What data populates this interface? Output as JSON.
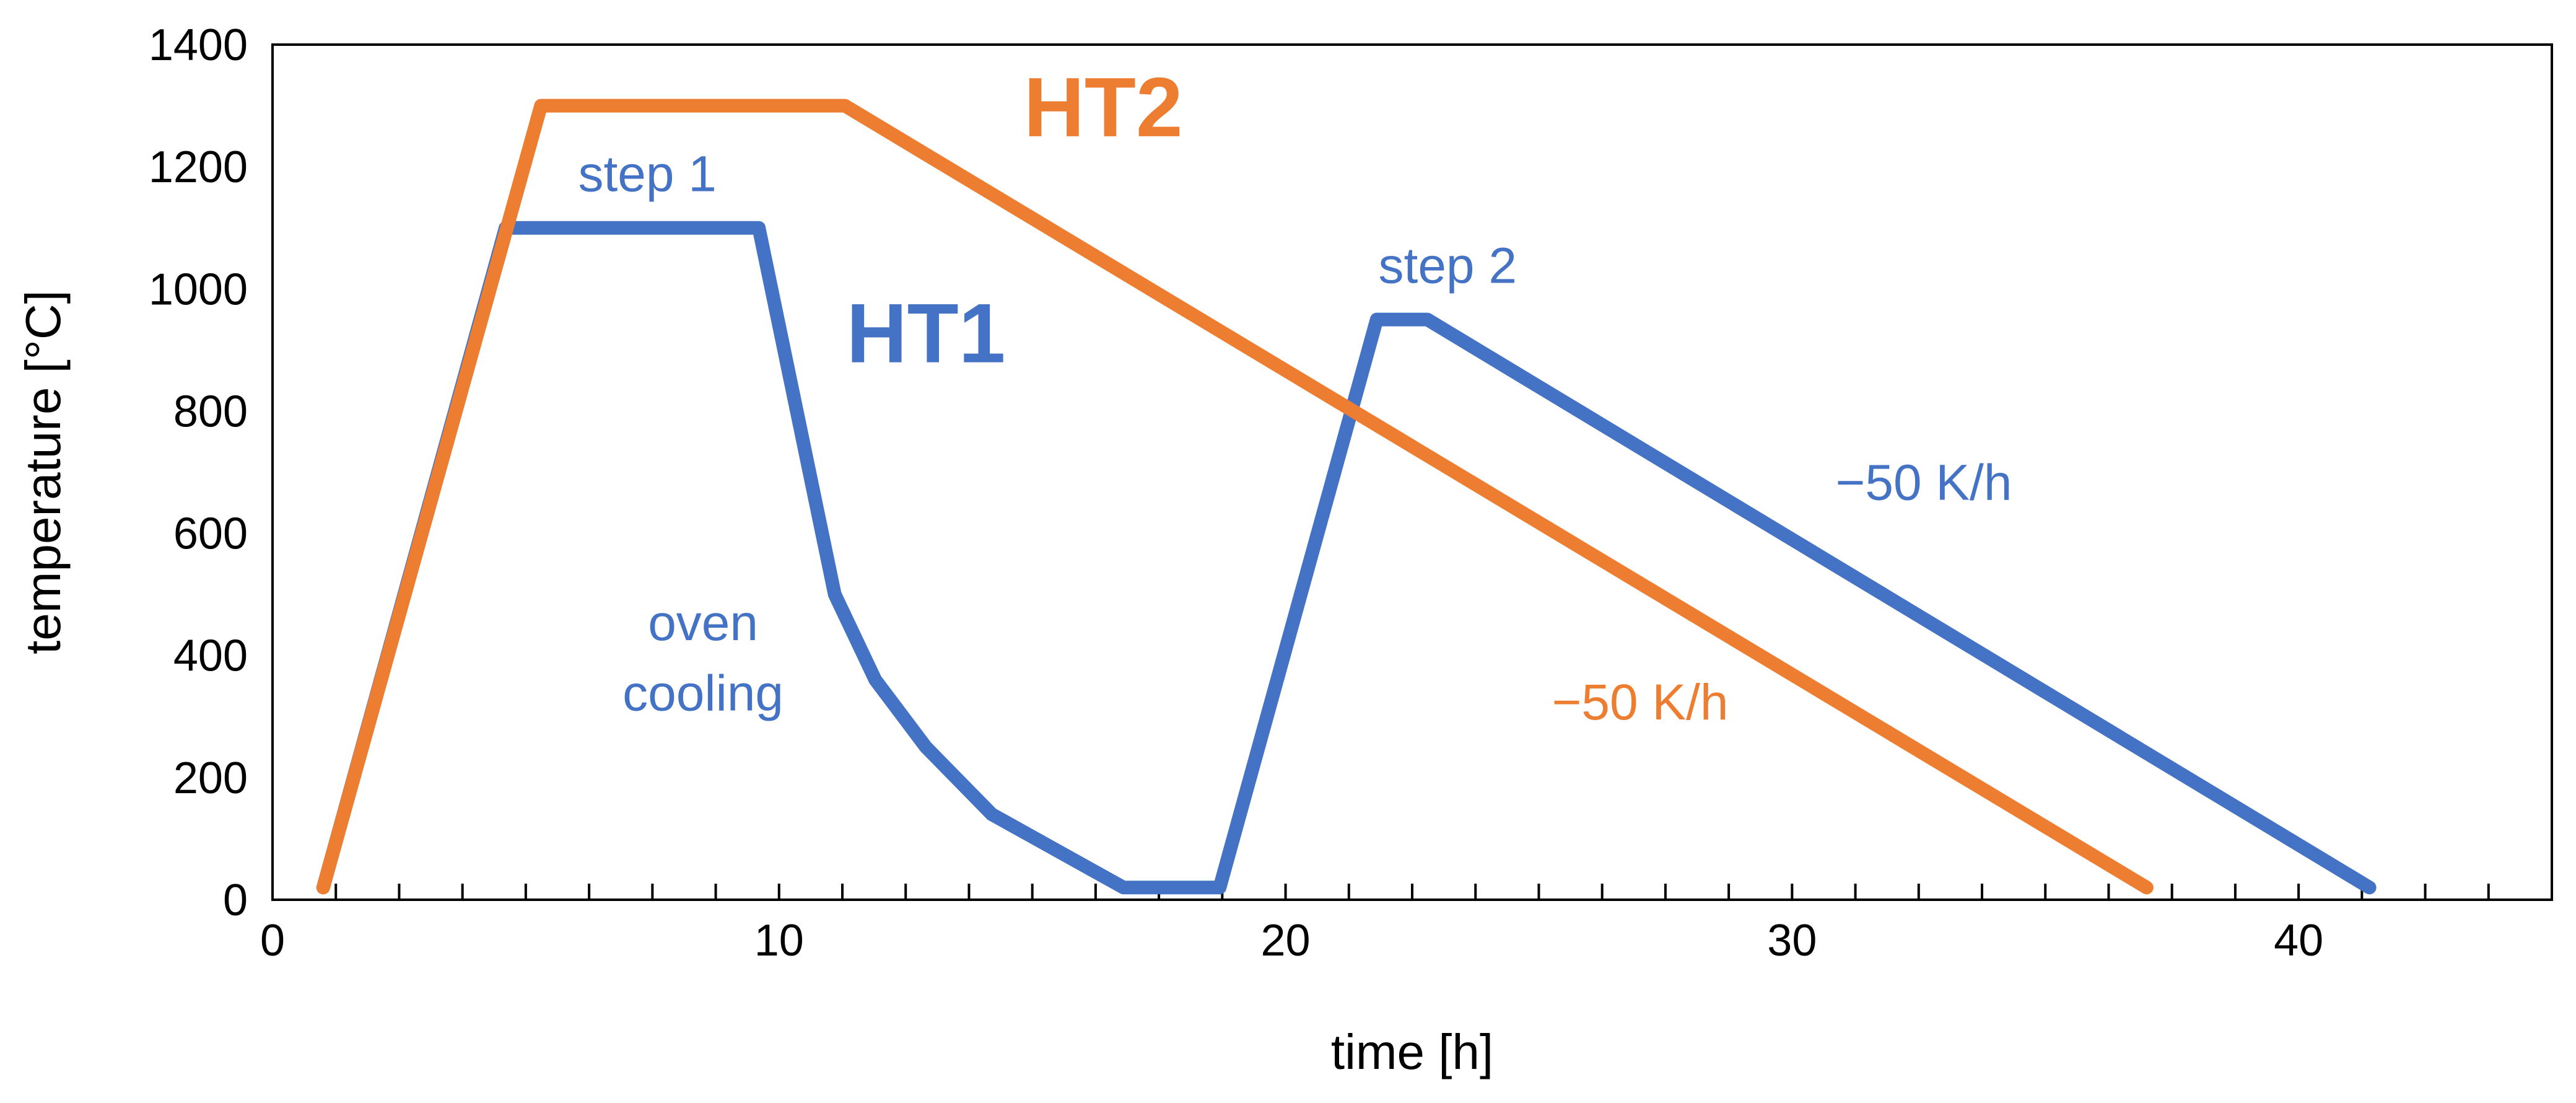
{
  "chart_data": {
    "type": "line",
    "title": "",
    "xlabel": "time [h]",
    "ylabel": "temperature [°C]",
    "xlim": [
      0,
      45
    ],
    "ylim": [
      0,
      1400
    ],
    "x_major_ticks": [
      0,
      10,
      20,
      30,
      40
    ],
    "x_minor_step": 1.25,
    "y_ticks": [
      0,
      200,
      400,
      600,
      800,
      1000,
      1200,
      1400
    ],
    "grid": false,
    "legend": "none",
    "series": [
      {
        "name": "HT1",
        "color": "#4472C4",
        "points": [
          [
            1.0,
            20
          ],
          [
            4.6,
            1100
          ],
          [
            9.6,
            1100
          ],
          [
            11.1,
            500
          ],
          [
            11.9,
            360
          ],
          [
            12.9,
            250
          ],
          [
            14.2,
            140
          ],
          [
            16.8,
            20
          ],
          [
            18.7,
            20
          ],
          [
            21.8,
            950
          ],
          [
            22.8,
            950
          ],
          [
            41.4,
            20
          ]
        ]
      },
      {
        "name": "HT2",
        "color": "#ED7D31",
        "points": [
          [
            1.0,
            20
          ],
          [
            5.3,
            1300
          ],
          [
            11.3,
            1300
          ],
          [
            37.0,
            20
          ]
        ]
      }
    ],
    "annotations": [
      {
        "text": "HT2",
        "series": "HT2",
        "x": 16.4,
        "y": 1250,
        "style": "series-name"
      },
      {
        "text": "HT1",
        "series": "HT1",
        "x": 12.9,
        "y": 880,
        "style": "series-name"
      },
      {
        "text": "step 1",
        "series": "HT1",
        "x": 7.4,
        "y": 1160,
        "style": "annot"
      },
      {
        "text": "step 2",
        "series": "HT1",
        "x": 23.2,
        "y": 1010,
        "style": "annot"
      },
      {
        "text": "−50 K/h",
        "series": "HT1",
        "x": 32.6,
        "y": 655,
        "style": "annot"
      },
      {
        "text": "oven",
        "series": "HT1",
        "x": 8.5,
        "y": 425,
        "style": "annot"
      },
      {
        "text": "cooling",
        "series": "HT1",
        "x": 8.5,
        "y": 310,
        "style": "annot"
      },
      {
        "text": "−50 K/h",
        "series": "HT2",
        "x": 27.0,
        "y": 295,
        "style": "annot"
      }
    ]
  }
}
